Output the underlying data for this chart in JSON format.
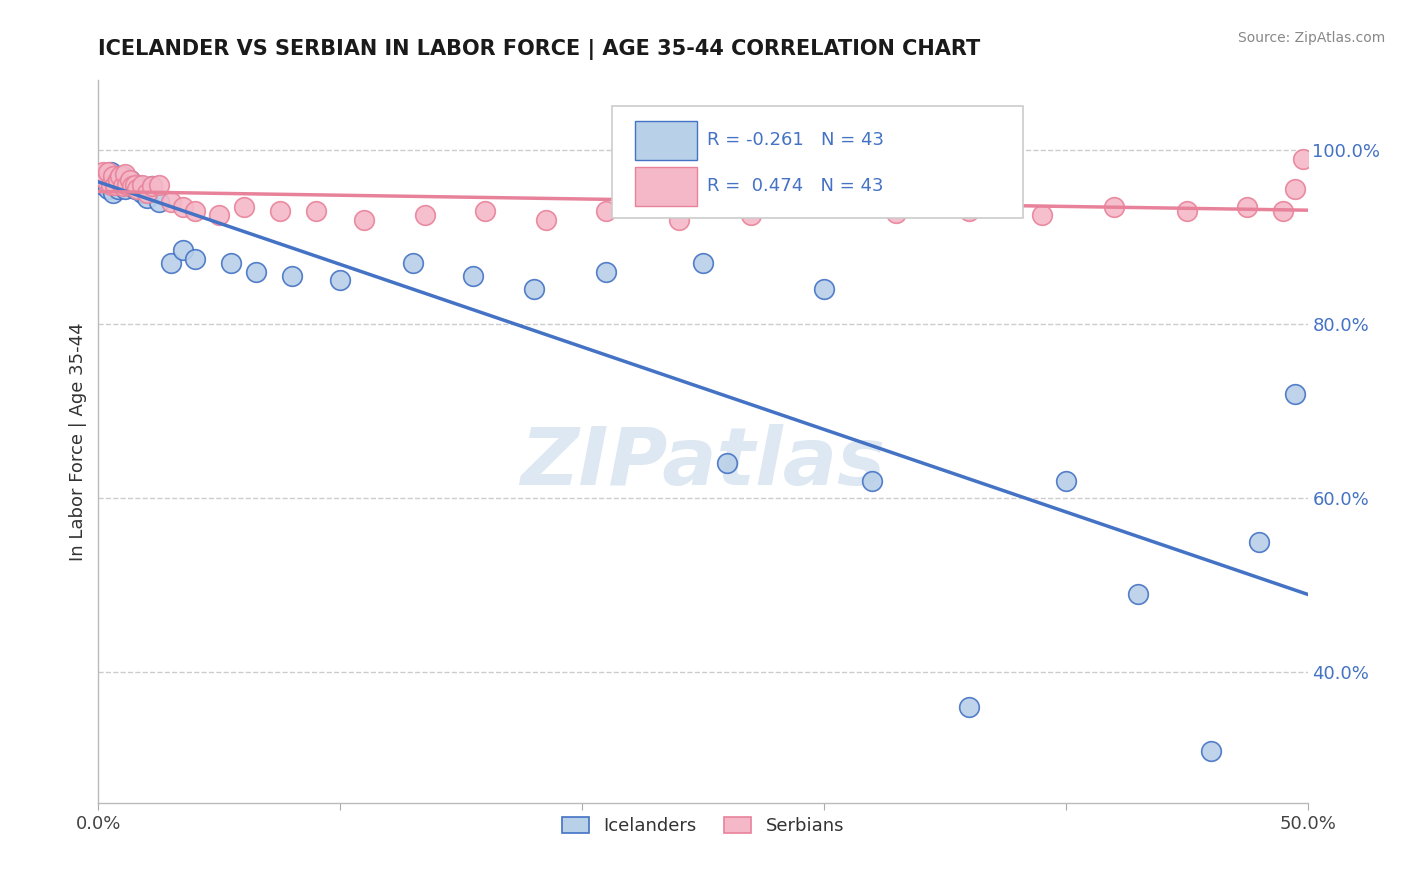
{
  "title": "ICELANDER VS SERBIAN IN LABOR FORCE | AGE 35-44 CORRELATION CHART",
  "source": "Source: ZipAtlas.com",
  "ylabel": "In Labor Force | Age 35-44",
  "xlim": [
    0.0,
    0.5
  ],
  "ylim": [
    0.25,
    1.08
  ],
  "xtick_positions": [
    0.0,
    0.1,
    0.2,
    0.3,
    0.4,
    0.5
  ],
  "xticklabels": [
    "0.0%",
    "",
    "",
    "",
    "",
    "50.0%"
  ],
  "ytick_positions": [
    0.4,
    0.6,
    0.8,
    1.0
  ],
  "yticklabels": [
    "40.0%",
    "60.0%",
    "80.0%",
    "100.0%"
  ],
  "legend_r_blue": "-0.261",
  "legend_n_blue": "43",
  "legend_r_pink": "0.474",
  "legend_n_pink": "43",
  "blue_fill": "#b8d0e8",
  "pink_fill": "#f5b8c8",
  "line_blue": "#4472c4",
  "line_pink": "#e8829a",
  "watermark_color": "#dde8f2",
  "icelanders_x": [
    0.002,
    0.003,
    0.004,
    0.005,
    0.005,
    0.006,
    0.007,
    0.007,
    0.008,
    0.009,
    0.01,
    0.01,
    0.011,
    0.012,
    0.013,
    0.014,
    0.015,
    0.016,
    0.018,
    0.02,
    0.022,
    0.025,
    0.03,
    0.035,
    0.04,
    0.055,
    0.065,
    0.08,
    0.1,
    0.13,
    0.155,
    0.18,
    0.21,
    0.25,
    0.26,
    0.3,
    0.32,
    0.36,
    0.4,
    0.43,
    0.46,
    0.48,
    0.495
  ],
  "icelanders_y": [
    0.96,
    0.97,
    0.955,
    0.965,
    0.975,
    0.95,
    0.96,
    0.97,
    0.955,
    0.965,
    0.97,
    0.958,
    0.955,
    0.96,
    0.965,
    0.958,
    0.955,
    0.96,
    0.95,
    0.945,
    0.958,
    0.94,
    0.87,
    0.885,
    0.875,
    0.87,
    0.86,
    0.855,
    0.85,
    0.87,
    0.855,
    0.84,
    0.86,
    0.87,
    0.64,
    0.84,
    0.62,
    0.36,
    0.62,
    0.49,
    0.31,
    0.55,
    0.72
  ],
  "serbians_x": [
    0.002,
    0.003,
    0.004,
    0.005,
    0.006,
    0.007,
    0.008,
    0.009,
    0.01,
    0.011,
    0.012,
    0.013,
    0.014,
    0.015,
    0.016,
    0.018,
    0.02,
    0.022,
    0.025,
    0.03,
    0.035,
    0.04,
    0.05,
    0.06,
    0.075,
    0.09,
    0.11,
    0.135,
    0.16,
    0.185,
    0.21,
    0.24,
    0.27,
    0.3,
    0.33,
    0.36,
    0.39,
    0.42,
    0.45,
    0.475,
    0.49,
    0.495,
    0.498
  ],
  "serbians_y": [
    0.975,
    0.965,
    0.975,
    0.96,
    0.97,
    0.96,
    0.965,
    0.97,
    0.958,
    0.972,
    0.96,
    0.965,
    0.958,
    0.96,
    0.955,
    0.96,
    0.95,
    0.958,
    0.96,
    0.94,
    0.935,
    0.93,
    0.925,
    0.935,
    0.93,
    0.93,
    0.92,
    0.925,
    0.93,
    0.92,
    0.93,
    0.92,
    0.925,
    0.935,
    0.928,
    0.93,
    0.925,
    0.935,
    0.93,
    0.935,
    0.93,
    0.955,
    0.99
  ]
}
